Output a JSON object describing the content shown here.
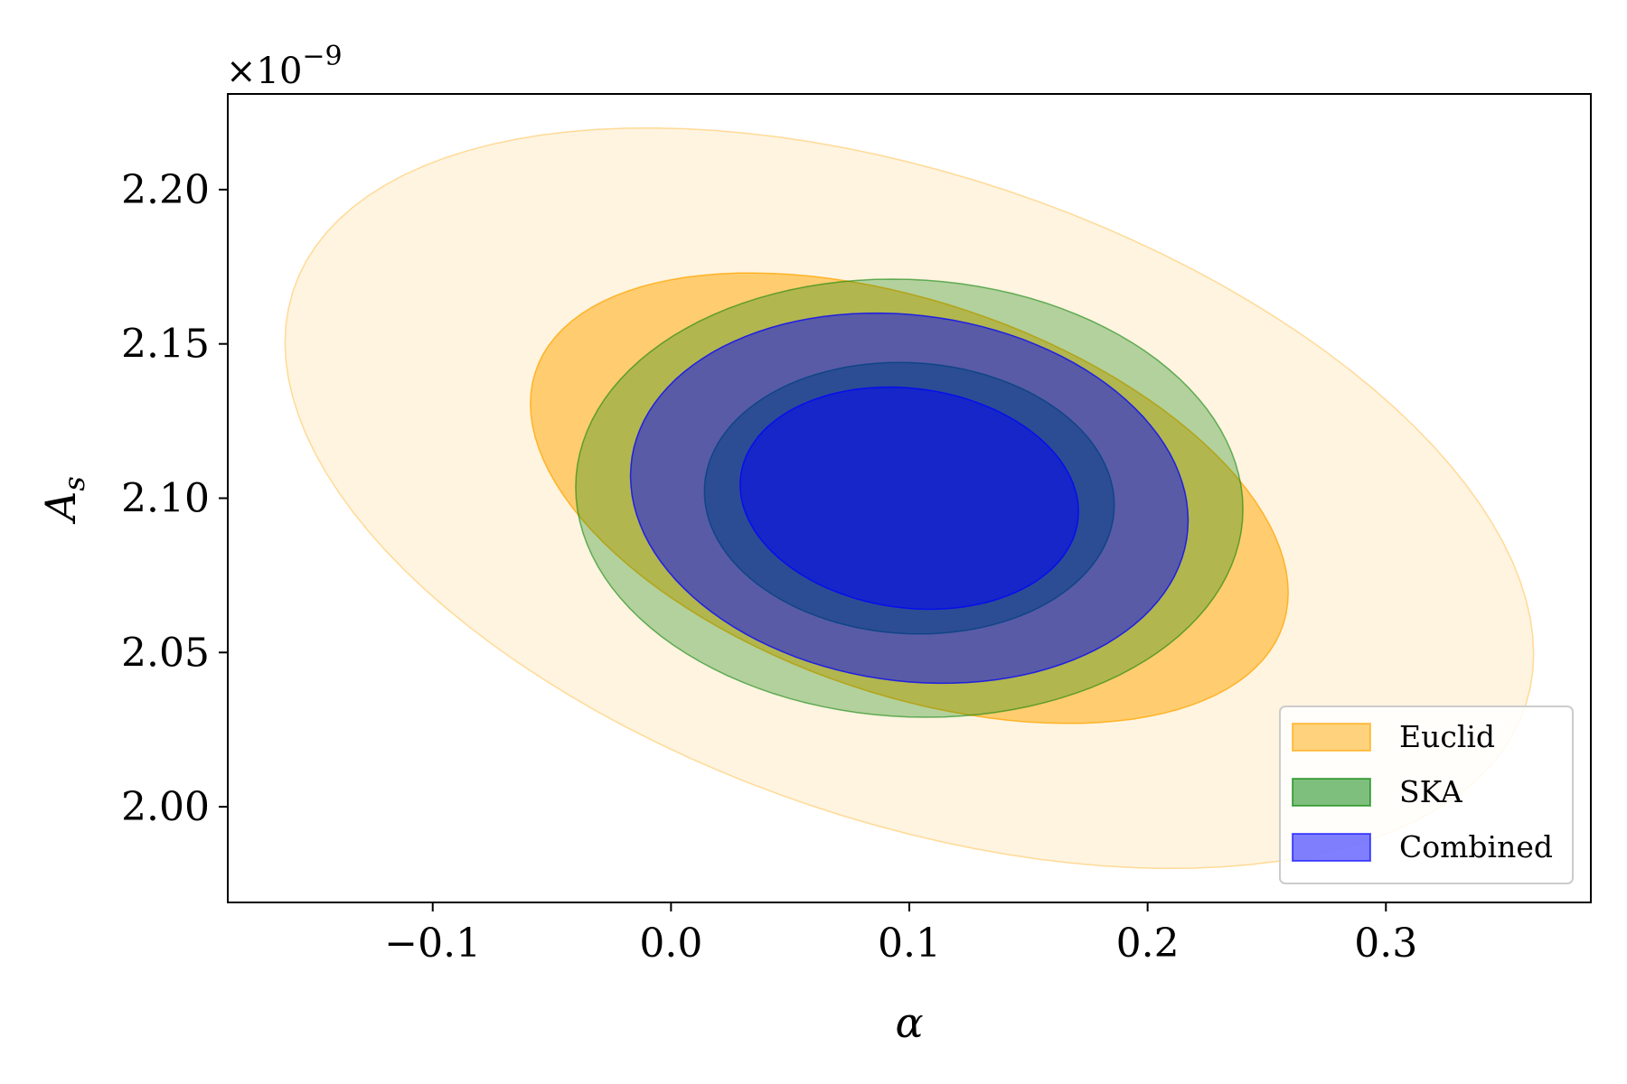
{
  "chart_data": {
    "type": "contour",
    "xlabel": "α",
    "ylabel_main": "A",
    "ylabel_sub": "s",
    "y_offset_label": "×10",
    "y_offset_exponent": "−9",
    "xlim": [
      -0.186,
      0.386
    ],
    "ylim": [
      1.969,
      2.231
    ],
    "x_ticks": [
      {
        "value": -0.1,
        "label": "−0.1"
      },
      {
        "value": 0.0,
        "label": "0.0"
      },
      {
        "value": 0.1,
        "label": "0.1"
      },
      {
        "value": 0.2,
        "label": "0.2"
      },
      {
        "value": 0.3,
        "label": "0.3"
      }
    ],
    "y_ticks": [
      {
        "value": 2.0,
        "label": "2.00"
      },
      {
        "value": 2.05,
        "label": "2.05"
      },
      {
        "value": 2.1,
        "label": "2.10"
      },
      {
        "value": 2.15,
        "label": "2.15"
      },
      {
        "value": 2.2,
        "label": "2.20"
      }
    ],
    "series": [
      {
        "name": "Euclid",
        "color": "#ffa500",
        "contours": [
          {
            "level": "2-sigma",
            "center": [
              0.1,
              2.1
            ],
            "x_halfwidth": 0.262,
            "y_halfwidth": 0.12,
            "correlation": -0.42,
            "opacity": 0.12
          },
          {
            "level": "1-sigma",
            "center": [
              0.1,
              2.1
            ],
            "x_halfwidth": 0.159,
            "y_halfwidth": 0.073,
            "correlation": -0.42,
            "opacity": 0.5
          }
        ]
      },
      {
        "name": "SKA",
        "color": "#008000",
        "contours": [
          {
            "level": "2-sigma",
            "center": [
              0.1,
              2.1
            ],
            "x_halfwidth": 0.14,
            "y_halfwidth": 0.071,
            "correlation": -0.05,
            "opacity": 0.3
          },
          {
            "level": "1-sigma",
            "center": [
              0.1,
              2.1
            ],
            "x_halfwidth": 0.086,
            "y_halfwidth": 0.044,
            "correlation": -0.05,
            "opacity": 0.5
          }
        ]
      },
      {
        "name": "Combined",
        "color": "#0000ff",
        "contours": [
          {
            "level": "2-sigma",
            "center": [
              0.1,
              2.1
            ],
            "x_halfwidth": 0.117,
            "y_halfwidth": 0.06,
            "correlation": -0.12,
            "opacity": 0.5
          },
          {
            "level": "1-sigma",
            "center": [
              0.1,
              2.1
            ],
            "x_halfwidth": 0.071,
            "y_halfwidth": 0.036,
            "correlation": -0.12,
            "opacity": 0.5
          }
        ]
      }
    ],
    "legend": {
      "position": "lower right",
      "entries": [
        {
          "name": "Euclid",
          "color": "#ffa500"
        },
        {
          "name": "SKA",
          "color": "#008000"
        },
        {
          "name": "Combined",
          "color": "#0000ff"
        }
      ]
    },
    "grid": false
  }
}
